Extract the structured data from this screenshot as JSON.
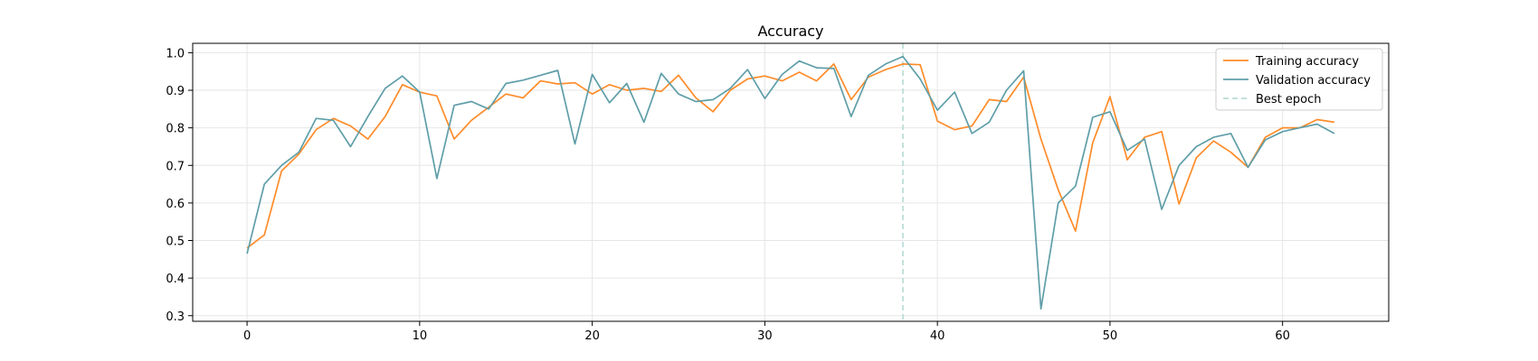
{
  "chart_data": {
    "type": "line",
    "title": "Accuracy",
    "xlabel": "",
    "ylabel": "",
    "xlim": [
      -3.15,
      66.15
    ],
    "ylim": [
      0.285,
      1.025
    ],
    "xticks": [
      0,
      10,
      20,
      30,
      40,
      50,
      60
    ],
    "yticks": [
      0.3,
      0.4,
      0.5,
      0.6,
      0.7,
      0.8,
      0.9,
      1.0
    ],
    "ytick_labels": [
      "0.3",
      "0.4",
      "0.5",
      "0.6",
      "0.7",
      "0.8",
      "0.9",
      "1.0"
    ],
    "grid": true,
    "legend_position": "top-right",
    "best_epoch": {
      "label": "Best epoch",
      "x": 38,
      "color": "#b9dcd6"
    },
    "series": [
      {
        "name": "Training accuracy",
        "color": "#ff8c2a",
        "x": [
          0,
          1,
          2,
          3,
          4,
          5,
          6,
          7,
          8,
          9,
          10,
          11,
          12,
          13,
          14,
          15,
          16,
          17,
          18,
          19,
          20,
          21,
          22,
          23,
          24,
          25,
          26,
          27,
          28,
          29,
          30,
          31,
          32,
          33,
          34,
          35,
          36,
          37,
          38,
          39,
          40,
          41,
          42,
          43,
          44,
          45,
          46,
          47,
          48,
          49,
          50,
          51,
          52,
          53,
          54,
          55,
          56,
          57,
          58,
          59,
          60,
          61,
          62,
          63
        ],
        "values": [
          0.48,
          0.515,
          0.685,
          0.73,
          0.795,
          0.825,
          0.805,
          0.77,
          0.83,
          0.915,
          0.895,
          0.885,
          0.77,
          0.82,
          0.855,
          0.89,
          0.88,
          0.925,
          0.917,
          0.92,
          0.89,
          0.915,
          0.9,
          0.905,
          0.897,
          0.94,
          0.88,
          0.843,
          0.9,
          0.93,
          0.938,
          0.925,
          0.948,
          0.925,
          0.97,
          0.875,
          0.935,
          0.955,
          0.97,
          0.968,
          0.818,
          0.795,
          0.805,
          0.875,
          0.87,
          0.935,
          0.77,
          0.635,
          0.525,
          0.76,
          0.883,
          0.715,
          0.775,
          0.79,
          0.597,
          0.72,
          0.765,
          0.735,
          0.695,
          0.775,
          0.8,
          0.8,
          0.822,
          0.815
        ]
      },
      {
        "name": "Validation accuracy",
        "color": "#5f9ea8",
        "x": [
          0,
          1,
          2,
          3,
          4,
          5,
          6,
          7,
          8,
          9,
          10,
          11,
          12,
          13,
          14,
          15,
          16,
          17,
          18,
          19,
          20,
          21,
          22,
          23,
          24,
          25,
          26,
          27,
          28,
          29,
          30,
          31,
          32,
          33,
          34,
          35,
          36,
          37,
          38,
          39,
          40,
          41,
          42,
          43,
          44,
          45,
          46,
          47,
          48,
          49,
          50,
          51,
          52,
          53,
          54,
          55,
          56,
          57,
          58,
          59,
          60,
          61,
          62,
          63
        ],
        "values": [
          0.465,
          0.65,
          0.7,
          0.735,
          0.825,
          0.82,
          0.75,
          0.83,
          0.905,
          0.938,
          0.895,
          0.665,
          0.86,
          0.87,
          0.85,
          0.918,
          0.927,
          0.94,
          0.953,
          0.757,
          0.942,
          0.867,
          0.918,
          0.815,
          0.945,
          0.89,
          0.87,
          0.875,
          0.905,
          0.955,
          0.878,
          0.942,
          0.978,
          0.96,
          0.958,
          0.83,
          0.94,
          0.97,
          0.99,
          0.93,
          0.847,
          0.895,
          0.785,
          0.815,
          0.9,
          0.952,
          0.318,
          0.6,
          0.645,
          0.828,
          0.843,
          0.74,
          0.77,
          0.583,
          0.7,
          0.75,
          0.775,
          0.785,
          0.695,
          0.768,
          0.79,
          0.8,
          0.81,
          0.785
        ]
      }
    ]
  }
}
